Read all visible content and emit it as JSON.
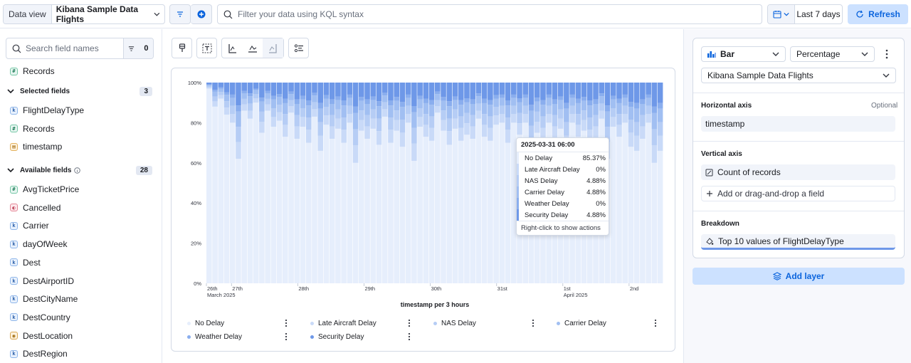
{
  "topbar": {
    "data_view_label": "Data view",
    "data_view_value": "Kibana Sample Data Flights",
    "search_placeholder": "Filter your data using KQL syntax",
    "date_range": "Last 7 days",
    "refresh_label": "Refresh"
  },
  "sidebar": {
    "search_placeholder": "Search field names",
    "filter_count": "0",
    "top_field": "Records",
    "selected_title": "Selected fields",
    "selected_count": "3",
    "selected_fields": [
      {
        "name": "FlightDelayType",
        "type": "k"
      },
      {
        "name": "Records",
        "type": "#"
      },
      {
        "name": "timestamp",
        "type": "date"
      }
    ],
    "available_title": "Available fields",
    "available_count": "28",
    "available_fields": [
      {
        "name": "AvgTicketPrice",
        "type": "#"
      },
      {
        "name": "Cancelled",
        "type": "bool"
      },
      {
        "name": "Carrier",
        "type": "k"
      },
      {
        "name": "dayOfWeek",
        "type": "k"
      },
      {
        "name": "Dest",
        "type": "k"
      },
      {
        "name": "DestAirportID",
        "type": "k"
      },
      {
        "name": "DestCityName",
        "type": "k"
      },
      {
        "name": "DestCountry",
        "type": "k"
      },
      {
        "name": "DestLocation",
        "type": "geo"
      },
      {
        "name": "DestRegion",
        "type": "k"
      }
    ]
  },
  "toolbar": {
    "icons": [
      "paint-brush-icon",
      "text-label-icon",
      "left-axis-icon",
      "bottom-axis-icon",
      "right-axis-icon",
      "legend-icon"
    ]
  },
  "chart_data": {
    "type": "bar",
    "stacked": true,
    "percentage": true,
    "xlabel": "timestamp per 3 hours",
    "yticks": [
      "0%",
      "20%",
      "40%",
      "60%",
      "80%",
      "100%"
    ],
    "xticks": [
      {
        "label": "26th",
        "sub": "March 2025",
        "pos": 0
      },
      {
        "label": "27th",
        "sub": "",
        "pos": 0.055
      },
      {
        "label": "28th",
        "sub": "",
        "pos": 0.2
      },
      {
        "label": "29th",
        "sub": "",
        "pos": 0.345
      },
      {
        "label": "30th",
        "sub": "",
        "pos": 0.49
      },
      {
        "label": "31st",
        "sub": "",
        "pos": 0.635
      },
      {
        "label": "1st",
        "sub": "April 2025",
        "pos": 0.78
      },
      {
        "label": "2nd",
        "sub": "",
        "pos": 0.925
      }
    ],
    "legend": [
      {
        "name": "No Delay",
        "color": "#e6eefc"
      },
      {
        "name": "Late Aircraft Delay",
        "color": "#c9daf8"
      },
      {
        "name": "NAS Delay",
        "color": "#b6cdf5"
      },
      {
        "name": "Carrier Delay",
        "color": "#a1bff2"
      },
      {
        "name": "Weather Delay",
        "color": "#8aaeee"
      },
      {
        "name": "Security Delay",
        "color": "#6e98e8"
      }
    ],
    "no_delay_pct": [
      97,
      88,
      92,
      84,
      80,
      62,
      86,
      82,
      90,
      75,
      86,
      78,
      81,
      73,
      85,
      72,
      78,
      70,
      83,
      66,
      79,
      72,
      77,
      70,
      80,
      60,
      76,
      72,
      77,
      69,
      83,
      70,
      76,
      68,
      80,
      61,
      78,
      73,
      71,
      85,
      76,
      69,
      77,
      71,
      74,
      72,
      82,
      73,
      71,
      79,
      80,
      70,
      80,
      74,
      80,
      63,
      75,
      71,
      80,
      72,
      77,
      66,
      80,
      73,
      76,
      70,
      72,
      82,
      62,
      78,
      73,
      80,
      68,
      66,
      72,
      80,
      60,
      66
    ]
  },
  "tooltip": {
    "title": "2025-03-31 06:00",
    "rows": [
      {
        "label": "No Delay",
        "value": "85.37%"
      },
      {
        "label": "Late Aircraft Delay",
        "value": "0%"
      },
      {
        "label": "NAS Delay",
        "value": "4.88%"
      },
      {
        "label": "Carrier Delay",
        "value": "4.88%"
      },
      {
        "label": "Weather Delay",
        "value": "0%"
      },
      {
        "label": "Security Delay",
        "value": "4.88%"
      }
    ],
    "footer": "Right-click to show actions"
  },
  "config": {
    "chart_type": "Bar",
    "mode": "Percentage",
    "data_view": "Kibana Sample Data Flights",
    "horizontal_axis_label": "Horizontal axis",
    "optional_label": "Optional",
    "horizontal_axis_value": "timestamp",
    "vertical_axis_label": "Vertical axis",
    "vertical_axis_value": "Count of records",
    "add_field_label": "Add or drag-and-drop a field",
    "breakdown_label": "Breakdown",
    "breakdown_value": "Top 10 values of FlightDelayType",
    "add_layer_label": "Add layer"
  }
}
